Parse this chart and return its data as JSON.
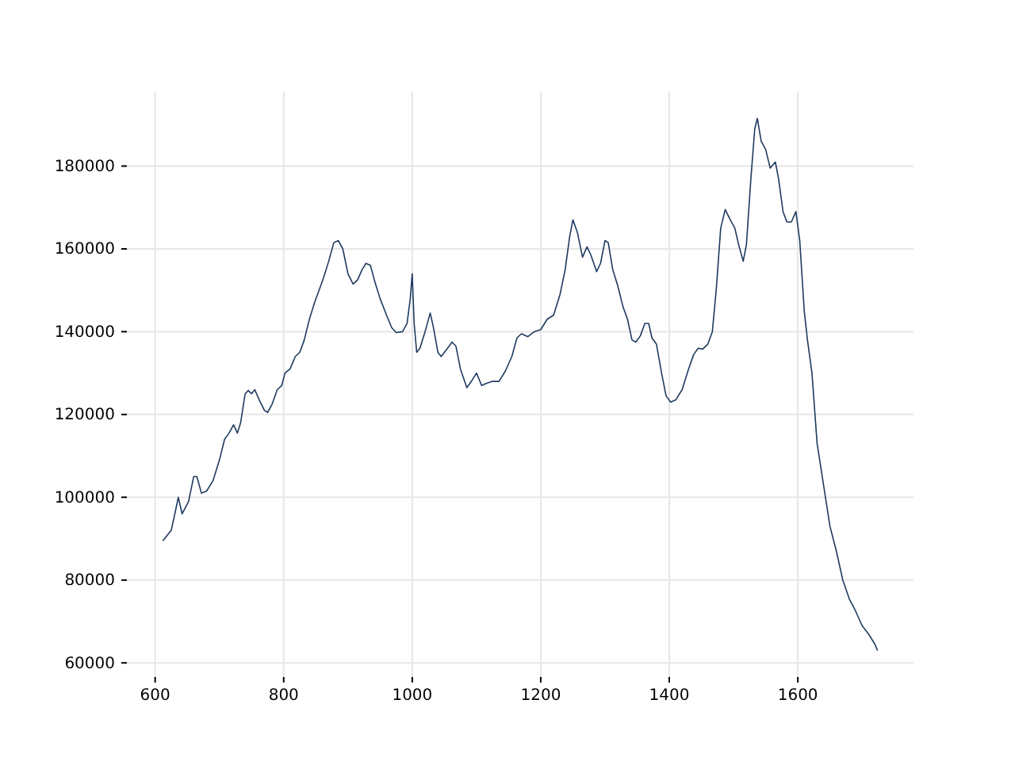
{
  "chart_data": {
    "type": "line",
    "xlim": [
      556,
      1780
    ],
    "ylim": [
      56600,
      197900
    ],
    "xticks": [
      600,
      800,
      1000,
      1200,
      1400,
      1600
    ],
    "yticks": [
      60000,
      80000,
      100000,
      120000,
      140000,
      160000,
      180000
    ],
    "grid": true,
    "series": [
      {
        "color": "#1f3a5f",
        "x": [
          612,
          625,
          632,
          636,
          642,
          652,
          660,
          665,
          672,
          680,
          690,
          700,
          708,
          715,
          722,
          728,
          733,
          740,
          745,
          750,
          755,
          762,
          770,
          775,
          782,
          790,
          797,
          802,
          810,
          818,
          825,
          832,
          840,
          848,
          855,
          862,
          870,
          878,
          885,
          892,
          900,
          908,
          915,
          922,
          928,
          935,
          942,
          950,
          960,
          968,
          975,
          985,
          992,
          997,
          1000,
          1003,
          1007,
          1012,
          1020,
          1028,
          1033,
          1040,
          1045,
          1055,
          1062,
          1068,
          1075,
          1085,
          1092,
          1100,
          1108,
          1115,
          1125,
          1135,
          1145,
          1155,
          1163,
          1170,
          1180,
          1190,
          1200,
          1210,
          1220,
          1230,
          1238,
          1245,
          1250,
          1257,
          1265,
          1272,
          1278,
          1287,
          1293,
          1300,
          1305,
          1312,
          1320,
          1328,
          1335,
          1342,
          1348,
          1355,
          1362,
          1368,
          1373,
          1380,
          1388,
          1395,
          1402,
          1410,
          1420,
          1430,
          1438,
          1445,
          1452,
          1460,
          1467,
          1473,
          1480,
          1487,
          1495,
          1502,
          1508,
          1515,
          1520,
          1527,
          1533,
          1537,
          1543,
          1550,
          1557,
          1565,
          1570,
          1577,
          1583,
          1590,
          1597,
          1603,
          1610,
          1615,
          1622,
          1630,
          1640,
          1650,
          1660,
          1670,
          1680,
          1690,
          1700,
          1710,
          1720,
          1724
        ],
        "values": [
          89500,
          92000,
          97000,
          100000,
          96000,
          99000,
          105000,
          105000,
          101000,
          101500,
          104000,
          109000,
          114000,
          115500,
          117500,
          115500,
          118000,
          125000,
          125800,
          125000,
          126000,
          123500,
          121000,
          120500,
          122500,
          126000,
          127000,
          130000,
          131000,
          134000,
          135000,
          138000,
          143000,
          147000,
          150000,
          153000,
          157000,
          161500,
          162000,
          160000,
          154000,
          151500,
          152500,
          155000,
          156500,
          156000,
          152000,
          148000,
          144000,
          141000,
          139800,
          140000,
          142000,
          148000,
          154000,
          142000,
          135000,
          136000,
          140000,
          144500,
          141000,
          135000,
          134000,
          136000,
          137500,
          136500,
          131000,
          126500,
          128000,
          130000,
          127000,
          127500,
          128000,
          128000,
          130500,
          134000,
          138500,
          139500,
          138800,
          140000,
          140500,
          143000,
          144000,
          149000,
          155000,
          163000,
          167000,
          164000,
          158000,
          160500,
          158500,
          154500,
          156500,
          162000,
          161500,
          155000,
          151000,
          146000,
          143000,
          138000,
          137500,
          139000,
          142000,
          142000,
          138500,
          137000,
          130000,
          124500,
          123000,
          123500,
          126000,
          131000,
          134500,
          136000,
          135800,
          137000,
          140000,
          150000,
          165000,
          169500,
          167000,
          165000,
          161000,
          157000,
          161000,
          177000,
          189000,
          191500,
          186000,
          184000,
          179500,
          181000,
          177000,
          169000,
          166500,
          166500,
          169000,
          162000,
          145000,
          138000,
          130000,
          113000,
          103000,
          93000,
          87000,
          80000,
          75500,
          72500,
          69000,
          67000,
          64500,
          63000
        ]
      }
    ]
  }
}
